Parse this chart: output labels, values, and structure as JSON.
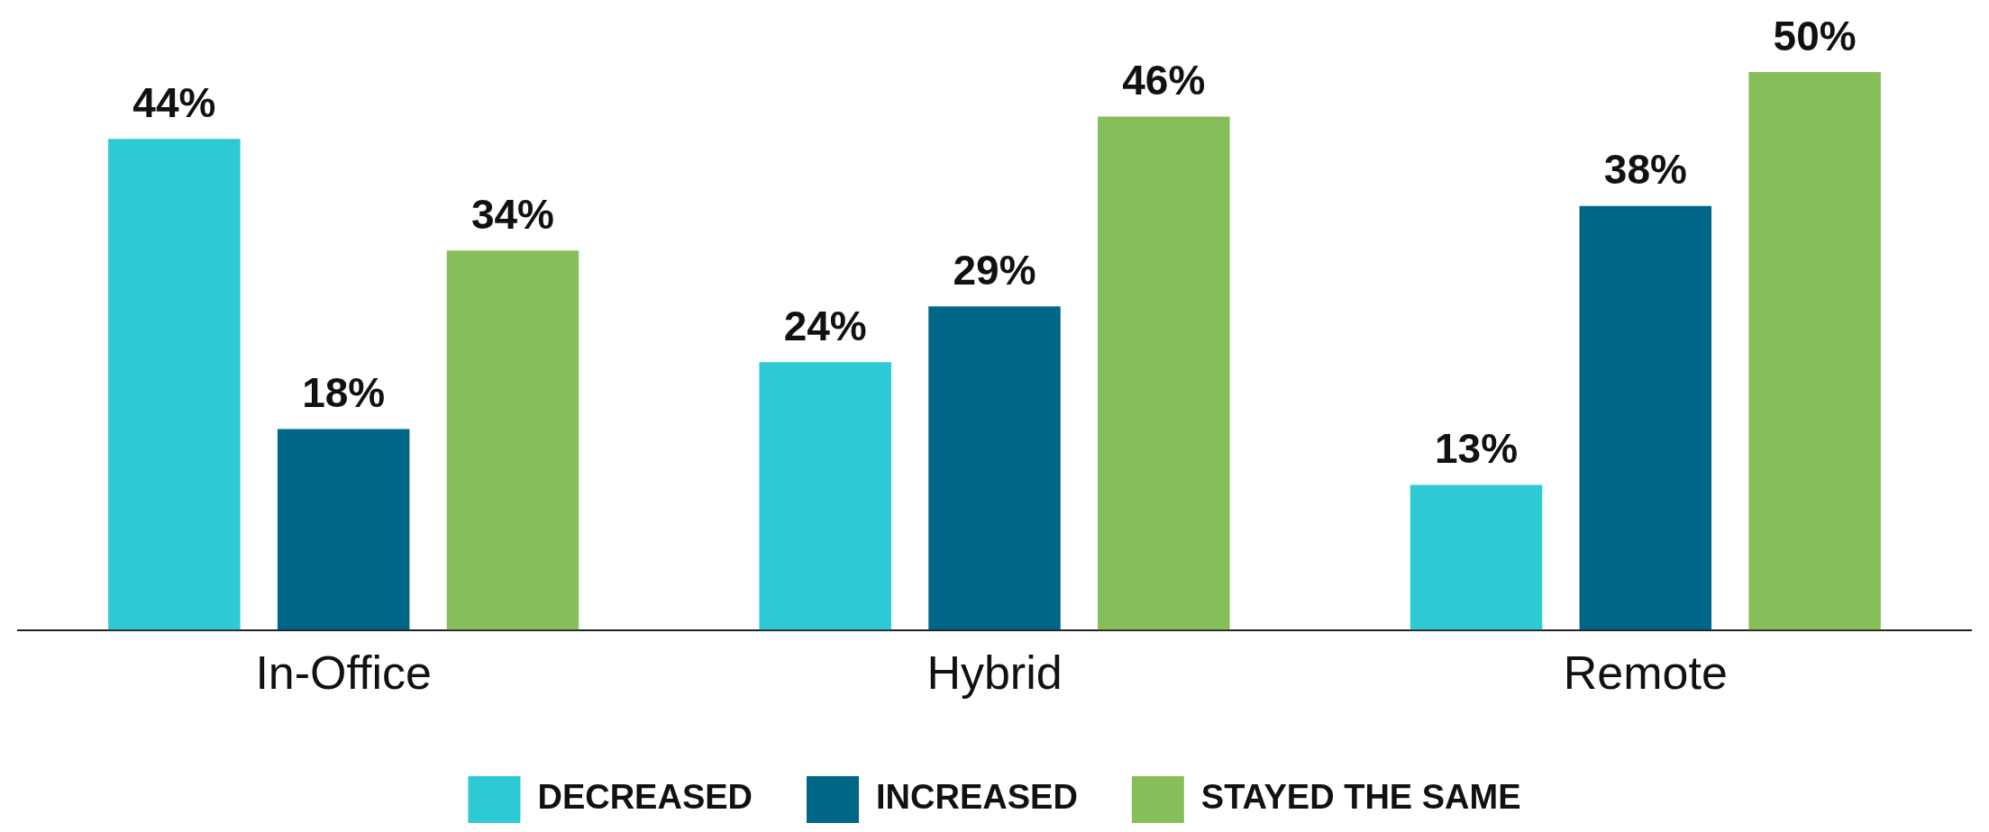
{
  "chart_data": {
    "type": "bar",
    "categories": [
      "In-Office",
      "Hybrid",
      "Remote"
    ],
    "series": [
      {
        "name": "DECREASED",
        "color": "#2ecad3",
        "values": [
          44,
          24,
          13
        ],
        "value_labels": [
          "44%",
          "24%",
          "13%"
        ]
      },
      {
        "name": "INCREASED",
        "color": "#006688",
        "values": [
          18,
          29,
          38
        ],
        "value_labels": [
          "18%",
          "29%",
          "38%"
        ]
      },
      {
        "name": "STAYED THE SAME",
        "color": "#86bf5a",
        "values": [
          34,
          46,
          50
        ],
        "value_labels": [
          "34%",
          "46%",
          "50%"
        ]
      }
    ],
    "grid": false,
    "legend": "bottom",
    "tick_labels": "x"
  }
}
